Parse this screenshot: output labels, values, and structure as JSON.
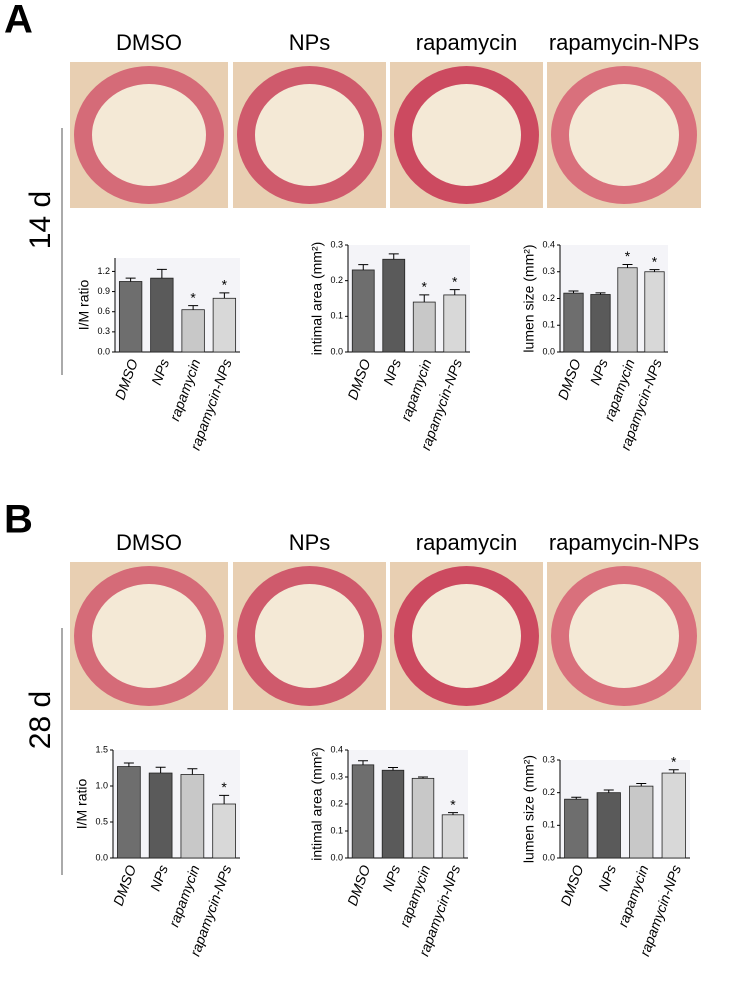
{
  "panels": [
    {
      "label": "A",
      "time": "14 d",
      "images": [
        "DMSO",
        "NPs",
        "rapamycin",
        "rapamycin-NPs"
      ]
    },
    {
      "label": "B",
      "time": "28 d",
      "images": [
        "DMSO",
        "NPs",
        "rapamycin",
        "rapamycin-NPs"
      ]
    }
  ],
  "chart_data": [
    {
      "type": "bar",
      "ylabel": "I/M ratio",
      "categories": [
        "DMSO",
        "NPs",
        "rapamycin",
        "rapamycin-NPs"
      ],
      "values": [
        1.05,
        1.1,
        0.63,
        0.8
      ],
      "errors": [
        0.05,
        0.13,
        0.06,
        0.08
      ],
      "markers": [
        null,
        null,
        "*",
        "*"
      ],
      "colors": [
        "#6e6e6e",
        "#5a5a5a",
        "#c8c8c8",
        "#d8d8d8"
      ],
      "ylim": [
        0,
        1.4
      ],
      "yticks": [
        {
          "value": 0,
          "label": "0.0"
        },
        0.3,
        0.6,
        0.9,
        1.2
      ]
    },
    {
      "type": "bar",
      "ylabel": "intimal area (mm²)",
      "categories": [
        "DMSO",
        "NPs",
        "rapamycin",
        "rapamycin-NPs"
      ],
      "values": [
        0.23,
        0.26,
        0.14,
        0.16
      ],
      "errors": [
        0.015,
        0.015,
        0.02,
        0.015
      ],
      "markers": [
        null,
        null,
        "*",
        "*"
      ],
      "colors": [
        "#6e6e6e",
        "#5a5a5a",
        "#c8c8c8",
        "#d8d8d8"
      ],
      "ylim": [
        0,
        0.3
      ],
      "yticks": [
        {
          "value": 0,
          "label": "0.0"
        },
        0.1,
        0.2,
        0.3
      ]
    },
    {
      "type": "bar",
      "ylabel": "lumen size (mm²)",
      "categories": [
        "DMSO",
        "NPs",
        "rapamycin",
        "rapamycin-NPs"
      ],
      "values": [
        0.22,
        0.215,
        0.315,
        0.3
      ],
      "errors": [
        0.008,
        0.006,
        0.012,
        0.008
      ],
      "markers": [
        null,
        null,
        "*",
        "*"
      ],
      "colors": [
        "#6e6e6e",
        "#5a5a5a",
        "#c8c8c8",
        "#d8d8d8"
      ],
      "ylim": [
        0,
        0.4
      ],
      "yticks": [
        {
          "value": 0,
          "label": "0.0"
        },
        0.1,
        0.2,
        0.3,
        0.4
      ]
    },
    {
      "type": "bar",
      "ylabel": "I/M ratio",
      "categories": [
        "DMSO",
        "NPs",
        "rapamycin",
        "rapamycin-NPs"
      ],
      "values": [
        1.27,
        1.18,
        1.16,
        0.75
      ],
      "errors": [
        0.05,
        0.08,
        0.08,
        0.12
      ],
      "markers": [
        null,
        null,
        null,
        "*"
      ],
      "colors": [
        "#6e6e6e",
        "#5a5a5a",
        "#c8c8c8",
        "#d8d8d8"
      ],
      "ylim": [
        0,
        1.5
      ],
      "yticks": [
        {
          "value": 0,
          "label": "0.0"
        },
        0.5,
        {
          "value": 1,
          "label": "1.0"
        },
        1.5
      ]
    },
    {
      "type": "bar",
      "ylabel": "intimal area (mm²)",
      "categories": [
        "DMSO",
        "NPs",
        "rapamycin",
        "rapamycin-NPs"
      ],
      "values": [
        0.345,
        0.325,
        0.295,
        0.16
      ],
      "errors": [
        0.015,
        0.01,
        0.005,
        0.008
      ],
      "markers": [
        null,
        null,
        null,
        "*"
      ],
      "colors": [
        "#6e6e6e",
        "#5a5a5a",
        "#c8c8c8",
        "#d8d8d8"
      ],
      "ylim": [
        0,
        0.4
      ],
      "yticks": [
        {
          "value": 0,
          "label": "0.0"
        },
        0.1,
        0.2,
        0.3,
        0.4
      ]
    },
    {
      "type": "bar",
      "ylabel": "lumen size (mm²)",
      "categories": [
        "DMSO",
        "NPs",
        "rapamycin",
        "rapamycin-NPs"
      ],
      "values": [
        0.18,
        0.2,
        0.22,
        0.26
      ],
      "errors": [
        0.006,
        0.008,
        0.008,
        0.01
      ],
      "markers": [
        null,
        null,
        null,
        "*"
      ],
      "colors": [
        "#6e6e6e",
        "#5a5a5a",
        "#c8c8c8",
        "#d8d8d8"
      ],
      "ylim": [
        0,
        0.3
      ],
      "yticks": [
        {
          "value": 0,
          "label": "0.0"
        },
        0.1,
        0.2,
        0.3
      ]
    }
  ]
}
